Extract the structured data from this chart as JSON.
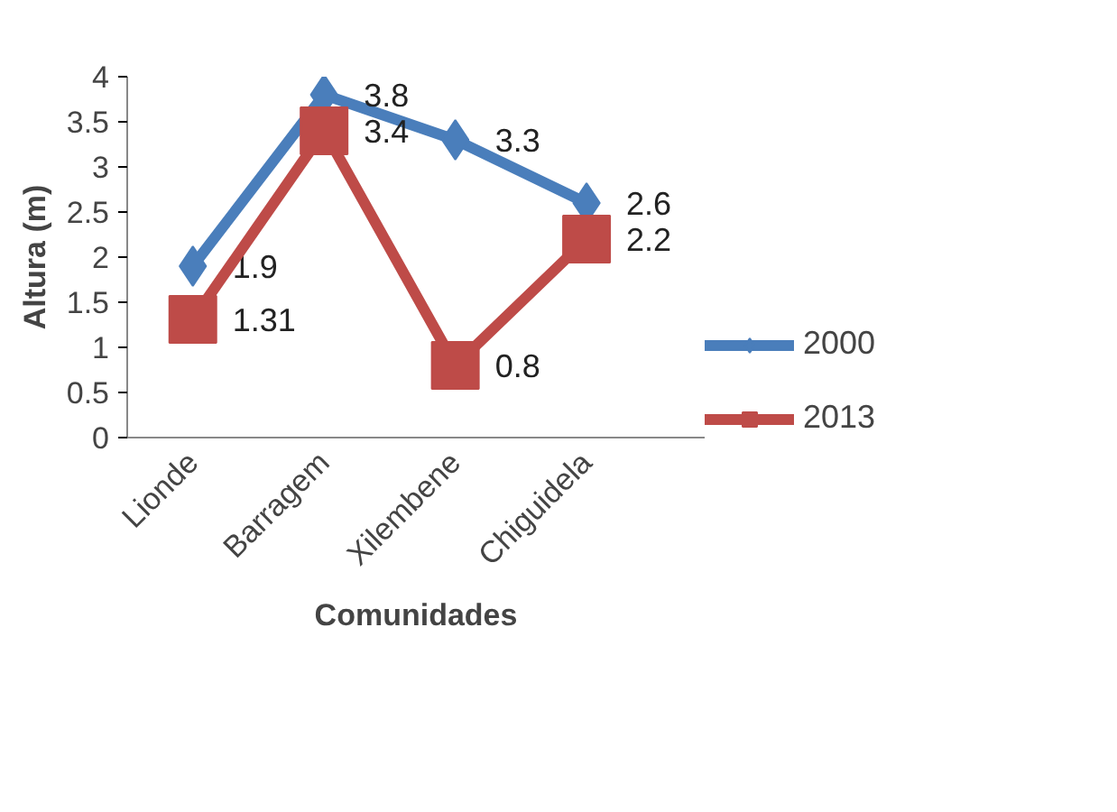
{
  "chart_data": {
    "type": "line",
    "xlabel": "Comunidades",
    "ylabel": "Altura (m)",
    "categories": [
      "Lionde",
      "Barragem",
      "Xilembene",
      "Chiguidela"
    ],
    "series": [
      {
        "name": "2000",
        "color": "#4a7ebb",
        "marker": "diamond",
        "values": [
          1.9,
          3.8,
          3.3,
          2.6
        ]
      },
      {
        "name": "2013",
        "color": "#be4b48",
        "marker": "square",
        "values": [
          1.31,
          3.4,
          0.8,
          2.2
        ]
      }
    ],
    "ylim": [
      0,
      4
    ],
    "yticks": [
      0,
      0.5,
      1,
      1.5,
      2,
      2.5,
      3,
      3.5,
      4
    ],
    "grid": false,
    "legend": "right",
    "data_labels": true
  }
}
